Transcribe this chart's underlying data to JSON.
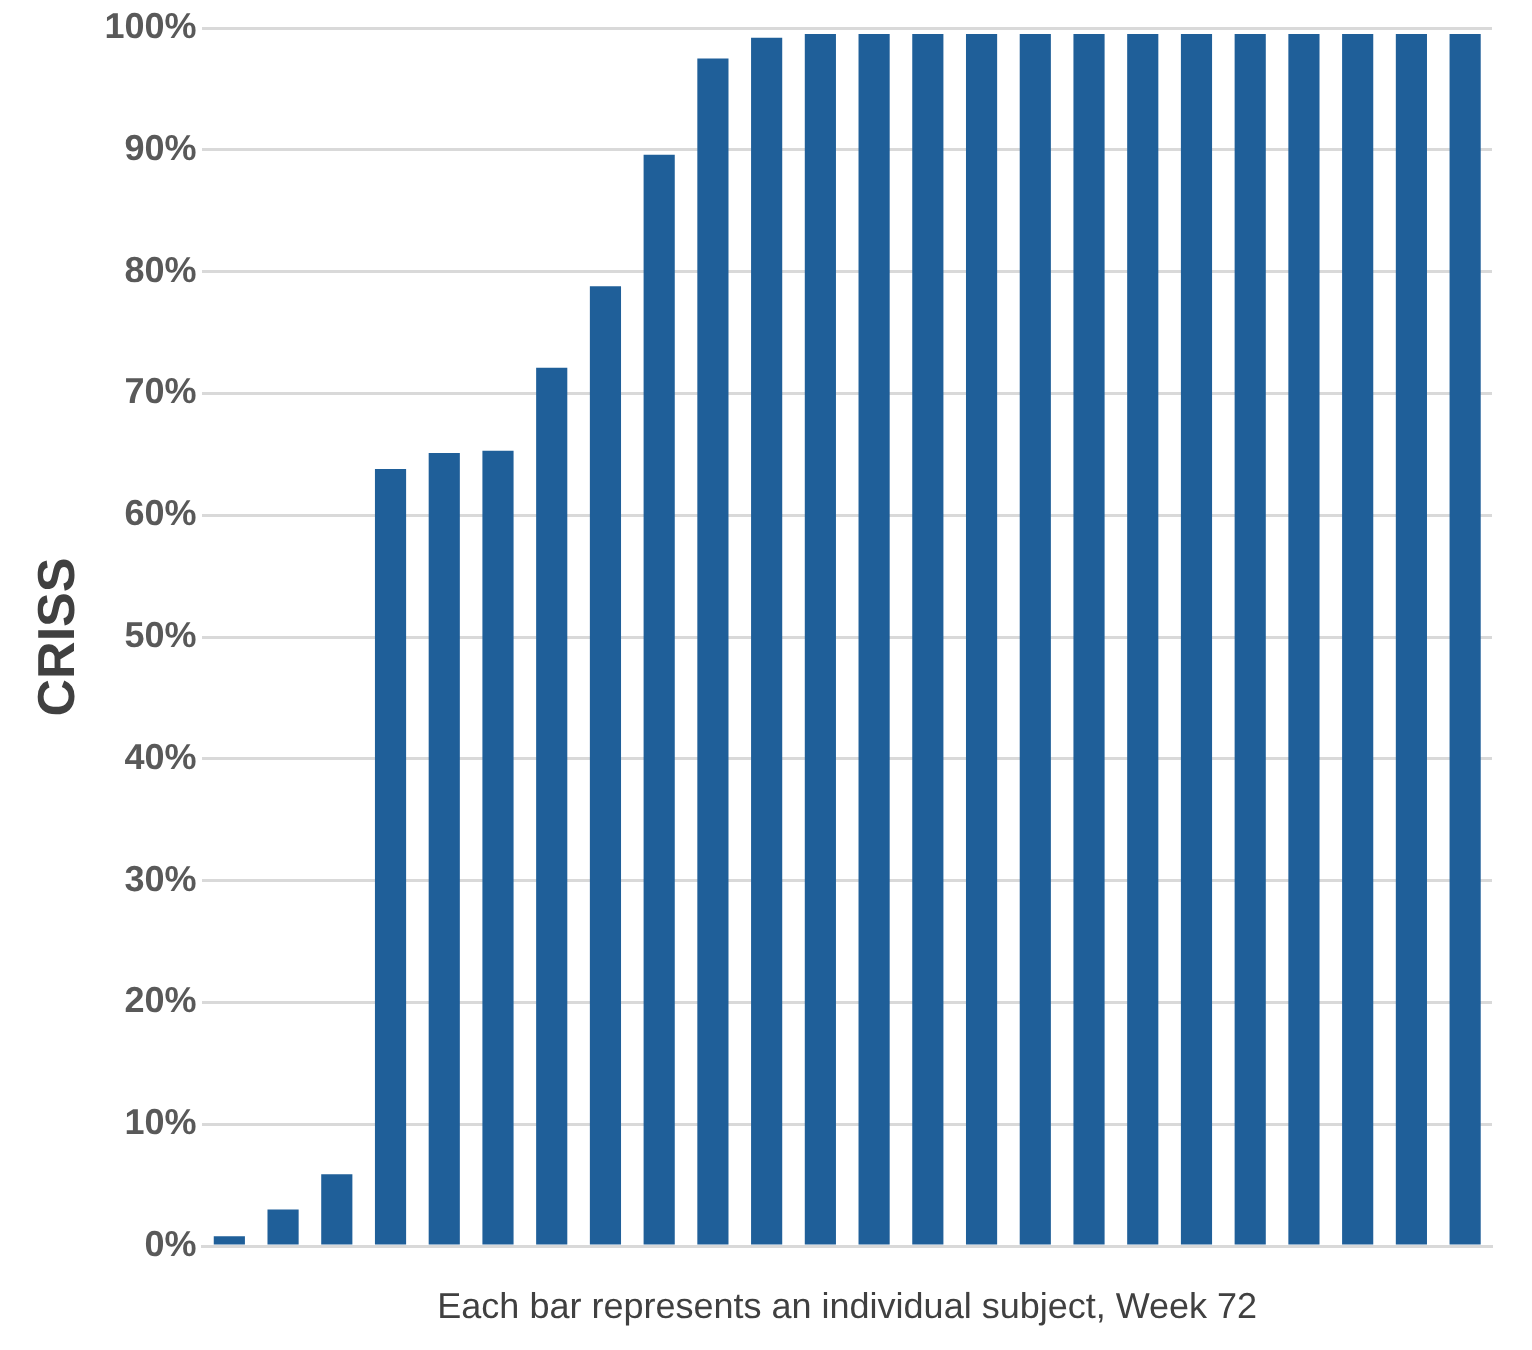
{
  "chart_data": {
    "type": "bar",
    "ylabel": "CRISS",
    "xlabel": "Each bar represents an individual subject, Week 72",
    "categories": [
      null,
      null,
      null,
      null,
      null,
      null,
      null,
      null,
      null,
      null,
      null,
      null,
      null,
      null,
      null,
      null,
      null,
      null,
      null,
      null,
      null,
      null,
      null,
      null
    ],
    "values": [
      0.8,
      3,
      5.9,
      63.8,
      65.1,
      65.3,
      72.1,
      78.8,
      89.6,
      97.5,
      99.2,
      99.5,
      99.5,
      99.5,
      99.5,
      99.5,
      99.5,
      99.5,
      99.5,
      99.5,
      99.5,
      99.5,
      99.5,
      99.5
    ],
    "color": "#1f5f99",
    "ylim": [
      0,
      100
    ],
    "yticks": [
      {
        "value": 0,
        "label": "0%"
      },
      {
        "value": 10,
        "label": "10%"
      },
      {
        "value": 20,
        "label": "20%"
      },
      {
        "value": 30,
        "label": "30%"
      },
      {
        "value": 40,
        "label": "40%"
      },
      {
        "value": 50,
        "label": "50%"
      },
      {
        "value": 60,
        "label": "60%"
      },
      {
        "value": 70,
        "label": "70%"
      },
      {
        "value": 80,
        "label": "80%"
      },
      {
        "value": 90,
        "label": "90%"
      },
      {
        "value": 100,
        "label": "100%"
      }
    ],
    "grid": "y",
    "legend": false
  }
}
